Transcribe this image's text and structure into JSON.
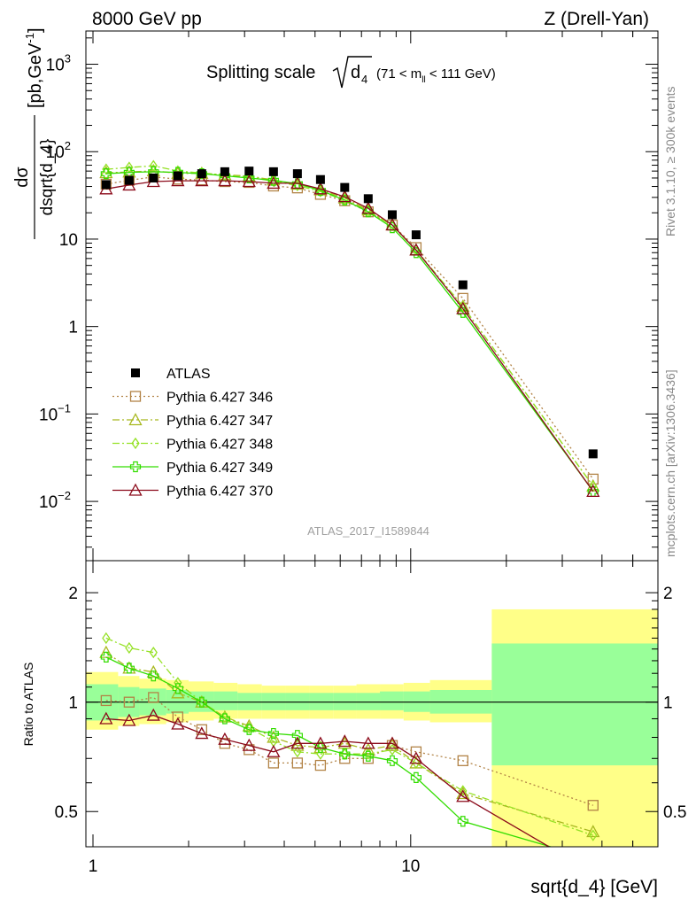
{
  "header": {
    "left": "8000 GeV pp",
    "right": "Z (Drell-Yan)"
  },
  "plot_title": {
    "main": "Splitting scale",
    "sub": "4",
    "range": "(71 < m",
    "range_sub": "ll",
    "range_end": " < 111 GeV)"
  },
  "side_labels": {
    "rivet": "Rivet 3.1.10, ≥ 300k events",
    "mcplots": "mcplots.cern.ch [arXiv:1306.3436]"
  },
  "analysis_id": "ATLAS_2017_I1589844",
  "y_label_main": {
    "num": "dσ",
    "den": "dsqrt{d_4}",
    "unit": "[pb,GeV",
    "unit_sup": "-1",
    "unit_end": "]"
  },
  "y_label_ratio": "Ratio to ATLAS",
  "x_label": "sqrt{d_4} [GeV]",
  "x_ticks": [
    "1",
    "10"
  ],
  "main_y_ticks": [
    {
      "value": 1000,
      "base": "10",
      "exp": "3"
    },
    {
      "value": 100,
      "base": "10",
      "exp": "2"
    },
    {
      "value": 10,
      "base": "10",
      "exp": ""
    },
    {
      "value": 1,
      "base": "1",
      "exp": ""
    },
    {
      "value": 0.1,
      "base": "10",
      "exp": "−1"
    },
    {
      "value": 0.01,
      "base": "10",
      "exp": "−2"
    }
  ],
  "ratio_y_ticks": [
    {
      "value": 2,
      "label": "2"
    },
    {
      "value": 1,
      "label": "1"
    },
    {
      "value": 0.5,
      "label": "0.5"
    }
  ],
  "chart_data": [
    {
      "type": "scatter",
      "panel": "main",
      "x_scale": "log",
      "y_scale": "log",
      "xlim": [
        0.95,
        60
      ],
      "ylim": [
        0.0021,
        2400
      ],
      "x": [
        1.1,
        1.3,
        1.55,
        1.85,
        2.2,
        2.6,
        3.1,
        3.7,
        4.4,
        5.2,
        6.2,
        7.35,
        8.75,
        10.4,
        14.6,
        37.5
      ],
      "series": [
        {
          "name": "ATLAS",
          "color": "#000000",
          "marker": "square-filled",
          "line": "none",
          "values": [
            42,
            47,
            50,
            53,
            56,
            59,
            60,
            59,
            56,
            48,
            39,
            29,
            19,
            11.2,
            3.0,
            0.035
          ]
        },
        {
          "name": "Pythia 6.427 346",
          "color": "#b28346",
          "marker": "square-open",
          "line": "dotted",
          "values": [
            42.5,
            47.0,
            51.5,
            48.5,
            47.5,
            45.5,
            44.5,
            40.5,
            38.5,
            32.5,
            27.5,
            20.5,
            14.5,
            8.0,
            2.1,
            0.018
          ]
        },
        {
          "name": "Pythia 6.427 347",
          "color": "#a8b81f",
          "marker": "triangle-open",
          "line": "dashdot",
          "values": [
            57.5,
            58.5,
            60.5,
            56.5,
            56.5,
            54.5,
            52.5,
            47.5,
            42.5,
            36.5,
            29.5,
            21.5,
            14.5,
            7.5,
            1.7,
            0.015
          ]
        },
        {
          "name": "Pythia 6.427 348",
          "color": "#95e125",
          "marker": "diamond-open",
          "line": "dashdot",
          "values": [
            63,
            66,
            69,
            60,
            57,
            54,
            51,
            46,
            41,
            35,
            28,
            21,
            14.2,
            7.5,
            1.7,
            0.015
          ]
        },
        {
          "name": "Pythia 6.427 349",
          "color": "#33dd00",
          "marker": "cross-open",
          "line": "solid",
          "values": [
            56,
            58,
            59,
            58,
            56,
            53,
            50,
            47,
            43,
            36,
            28,
            20.5,
            13.5,
            7.0,
            1.45,
            0.013
          ]
        },
        {
          "name": "Pythia 6.427 370",
          "color": "#8b0a1a",
          "marker": "triangle-open",
          "line": "solid",
          "values": [
            37.5,
            41.5,
            45.5,
            46.5,
            46.5,
            46.5,
            45.5,
            43.5,
            43.5,
            37.5,
            30.5,
            22.5,
            14.5,
            7.5,
            1.6,
            0.013
          ]
        }
      ],
      "legend": "lower-left"
    },
    {
      "type": "line",
      "panel": "ratio",
      "x_scale": "log",
      "y_scale": "log",
      "xlim": [
        0.95,
        60
      ],
      "ylim": [
        0.4,
        2.45
      ],
      "reference_line": 1,
      "bands": {
        "edges": [
          0.95,
          1.2,
          1.4,
          1.7,
          2.0,
          2.4,
          2.85,
          3.4,
          4.05,
          4.8,
          5.7,
          6.75,
          8.0,
          9.5,
          11.5,
          18.0,
          60
        ],
        "yellow_lo": [
          0.84,
          0.86,
          0.87,
          0.88,
          0.89,
          0.9,
          0.9,
          0.9,
          0.9,
          0.9,
          0.9,
          0.9,
          0.9,
          0.89,
          0.88,
          0.33
        ],
        "yellow_hi": [
          1.21,
          1.18,
          1.16,
          1.15,
          1.14,
          1.13,
          1.12,
          1.11,
          1.11,
          1.11,
          1.11,
          1.12,
          1.12,
          1.13,
          1.15,
          1.8
        ],
        "green_lo": [
          0.89,
          0.91,
          0.92,
          0.93,
          0.94,
          0.95,
          0.95,
          0.95,
          0.95,
          0.95,
          0.95,
          0.95,
          0.95,
          0.94,
          0.93,
          0.67
        ],
        "green_hi": [
          1.12,
          1.1,
          1.09,
          1.08,
          1.07,
          1.07,
          1.06,
          1.06,
          1.06,
          1.06,
          1.06,
          1.06,
          1.07,
          1.07,
          1.08,
          1.45
        ]
      },
      "x": [
        1.1,
        1.3,
        1.55,
        1.85,
        2.2,
        2.6,
        3.1,
        3.7,
        4.4,
        5.2,
        6.2,
        7.35,
        8.75,
        10.4,
        14.6,
        37.5
      ],
      "series": [
        {
          "name": "Pythia 6.427 346",
          "color": "#b28346",
          "marker": "square-open",
          "line": "dotted",
          "values": [
            1.01,
            1.0,
            1.03,
            0.91,
            0.84,
            0.77,
            0.74,
            0.68,
            0.68,
            0.67,
            0.7,
            0.7,
            0.76,
            0.73,
            0.69,
            0.52
          ]
        },
        {
          "name": "Pythia 6.427 347",
          "color": "#a8b81f",
          "marker": "triangle-open",
          "line": "dashdot",
          "values": [
            1.37,
            1.24,
            1.21,
            1.06,
            1.0,
            0.91,
            0.86,
            0.8,
            0.76,
            0.75,
            0.77,
            0.74,
            0.76,
            0.68,
            0.56,
            0.44
          ]
        },
        {
          "name": "Pythia 6.427 348",
          "color": "#95e125",
          "marker": "diamond-open",
          "line": "dashdot",
          "values": [
            1.5,
            1.41,
            1.37,
            1.13,
            1.0,
            0.91,
            0.85,
            0.78,
            0.73,
            0.72,
            0.72,
            0.72,
            0.74,
            0.68,
            0.57,
            0.43
          ]
        },
        {
          "name": "Pythia 6.427 349",
          "color": "#33dd00",
          "marker": "cross-open",
          "line": "solid",
          "values": [
            1.33,
            1.24,
            1.18,
            1.09,
            1.0,
            0.9,
            0.84,
            0.82,
            0.81,
            0.75,
            0.72,
            0.71,
            0.69,
            0.62,
            0.47,
            0.37
          ]
        },
        {
          "name": "Pythia 6.427 370",
          "color": "#8b0a1a",
          "marker": "triangle-open",
          "line": "solid",
          "values": [
            0.9,
            0.89,
            0.92,
            0.87,
            0.82,
            0.79,
            0.76,
            0.73,
            0.77,
            0.77,
            0.78,
            0.77,
            0.77,
            0.7,
            0.55,
            0.34
          ]
        }
      ]
    }
  ]
}
